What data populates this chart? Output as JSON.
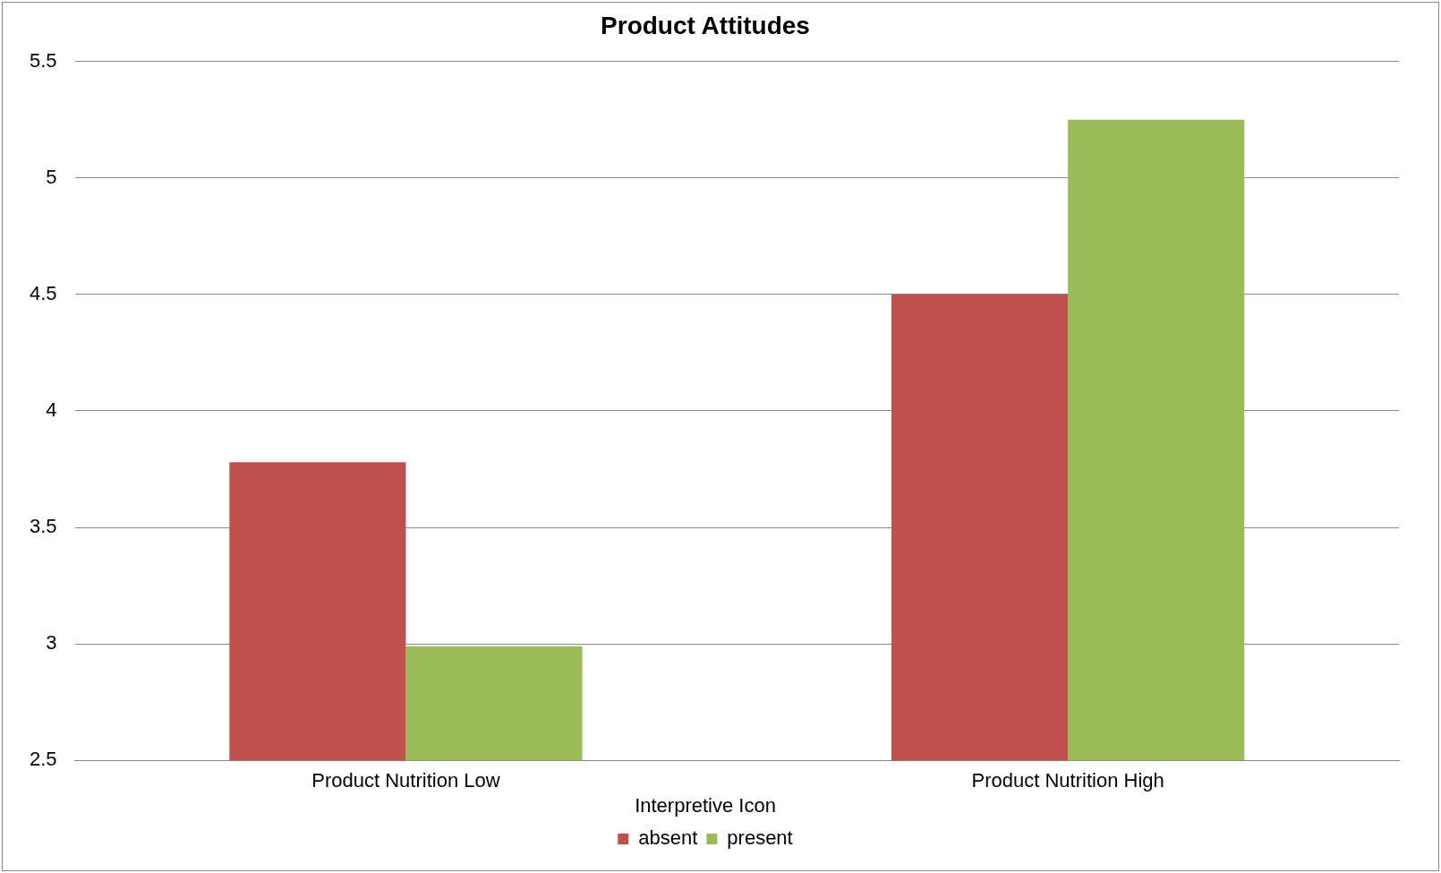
{
  "chart_data": {
    "type": "bar",
    "title": "Product Attitudes",
    "categories": [
      "Product Nutrition Low",
      "Product Nutrition High"
    ],
    "series": [
      {
        "name": "absent",
        "color": "#c0504d",
        "values": [
          3.78,
          4.5
        ]
      },
      {
        "name": "present",
        "color": "#9bbb59",
        "values": [
          2.99,
          5.25
        ]
      }
    ],
    "legend_title": "Interpretive Icon",
    "ylim": [
      2.5,
      5.5
    ],
    "yticks": [
      2.5,
      3,
      3.5,
      4,
      4.5,
      5,
      5.5
    ],
    "grid": "y",
    "legend": "bottom"
  }
}
